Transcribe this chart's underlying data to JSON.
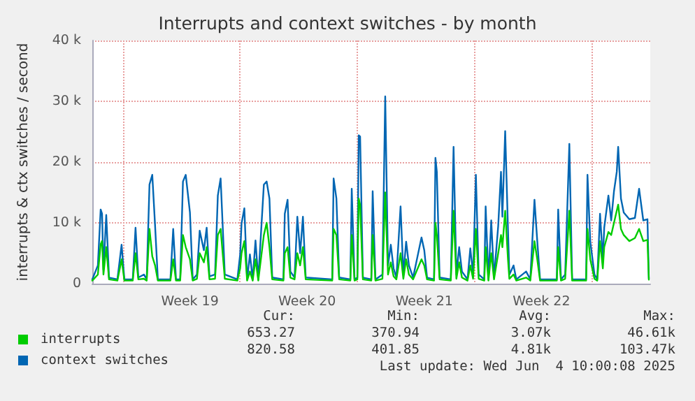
{
  "chart_data": {
    "type": "line",
    "title": "Interrupts and context switches - by month",
    "ylabel": "interrupts & ctx switches / second",
    "x": [
      "2025-05-02T04:00",
      "2025-05-02T12:00",
      "2025-05-02T16:00",
      "2025-05-02T18:00",
      "2025-05-02T20:00",
      "2025-05-03T00:00",
      "2025-05-03T04:00",
      "2025-05-03T16:00",
      "2025-05-03T22:00",
      "2025-05-04T02:00",
      "2025-05-04T14:00",
      "2025-05-04T18:00",
      "2025-05-04T22:00",
      "2025-05-05T06:00",
      "2025-05-05T10:00",
      "2025-05-05T14:00",
      "2025-05-05T18:00",
      "2025-05-05T22:00",
      "2025-05-06T02:00",
      "2025-05-06T20:00",
      "2025-05-07T00:00",
      "2025-05-07T04:00",
      "2025-05-07T10:00",
      "2025-05-07T14:00",
      "2025-05-07T18:00",
      "2025-05-08T00:00",
      "2025-05-08T04:00",
      "2025-05-08T10:00",
      "2025-05-08T14:00",
      "2025-05-08T20:00",
      "2025-05-09T00:00",
      "2025-05-09T04:00",
      "2025-05-09T12:00",
      "2025-05-09T16:00",
      "2025-05-09T20:00",
      "2025-05-10T02:00",
      "2025-05-10T20:00",
      "2025-05-11T00:00",
      "2025-05-11T02:00",
      "2025-05-11T06:00",
      "2025-05-11T10:00",
      "2025-05-11T14:00",
      "2025-05-11T18:00",
      "2025-05-11T22:00",
      "2025-05-12T02:00",
      "2025-05-12T10:00",
      "2025-05-12T14:00",
      "2025-05-12T18:00",
      "2025-05-12T22:00",
      "2025-05-13T14:00",
      "2025-05-13T16:00",
      "2025-05-13T20:00",
      "2025-05-14T00:00",
      "2025-05-14T06:00",
      "2025-05-14T10:00",
      "2025-05-14T14:00",
      "2025-05-14T18:00",
      "2025-05-14T22:00",
      "2025-05-16T12:00",
      "2025-05-16T14:00",
      "2025-05-16T18:00",
      "2025-05-16T22:00",
      "2025-05-17T14:00",
      "2025-05-17T16:00",
      "2025-05-17T20:00",
      "2025-05-18T00:00",
      "2025-05-18T02:00",
      "2025-05-18T04:00",
      "2025-05-18T08:00",
      "2025-05-18T20:00",
      "2025-05-18T22:00",
      "2025-05-19T02:00",
      "2025-05-19T12:00",
      "2025-05-19T16:00",
      "2025-05-19T20:00",
      "2025-05-20T00:00",
      "2025-05-20T04:00",
      "2025-05-20T08:00",
      "2025-05-20T14:00",
      "2025-05-20T18:00",
      "2025-05-20T22:00",
      "2025-05-21T02:00",
      "2025-05-21T08:00",
      "2025-05-21T20:00",
      "2025-05-22T00:00",
      "2025-05-22T04:00",
      "2025-05-22T14:00",
      "2025-05-22T16:00",
      "2025-05-22T18:00",
      "2025-05-22T22:00",
      "2025-05-23T14:00",
      "2025-05-23T18:00",
      "2025-05-23T22:00",
      "2025-05-24T02:00",
      "2025-05-24T06:00",
      "2025-05-24T14:00",
      "2025-05-24T18:00",
      "2025-05-24T22:00",
      "2025-05-25T02:00",
      "2025-05-25T06:00",
      "2025-05-25T14:00",
      "2025-05-25T16:00",
      "2025-05-25T20:00",
      "2025-05-26T00:00",
      "2025-05-26T04:00",
      "2025-05-26T10:00",
      "2025-05-26T14:00",
      "2025-05-26T16:00",
      "2025-05-26T20:00",
      "2025-05-27T00:00",
      "2025-05-27T02:00",
      "2025-05-27T08:00",
      "2025-05-27T12:00",
      "2025-05-28T02:00",
      "2025-05-28T08:00",
      "2025-05-28T14:00",
      "2025-05-28T18:00",
      "2025-05-28T22:00",
      "2025-05-29T22:00",
      "2025-05-30T00:00",
      "2025-05-30T04:00",
      "2025-05-30T10:00",
      "2025-05-30T16:00",
      "2025-05-30T20:00",
      "2025-05-31T16:00",
      "2025-05-31T18:00",
      "2025-05-31T22:00",
      "2025-06-01T04:00",
      "2025-06-01T08:00",
      "2025-06-01T12:00",
      "2025-06-01T16:00",
      "2025-06-01T18:00",
      "2025-06-02T00:00",
      "2025-06-02T04:00",
      "2025-06-02T08:00",
      "2025-06-02T12:00",
      "2025-06-02T14:00",
      "2025-06-02T18:00",
      "2025-06-02T22:00",
      "2025-06-03T06:00",
      "2025-06-03T14:00",
      "2025-06-03T20:00",
      "2025-06-04T02:00",
      "2025-06-04T08:00",
      "2025-06-04T10:00"
    ],
    "series": [
      {
        "name": "interrupts",
        "color": "#00cc00",
        "values": [
          500,
          1500,
          6500,
          7000,
          1500,
          6000,
          700,
          500,
          4000,
          500,
          500,
          5000,
          700,
          800,
          500,
          9000,
          4500,
          3000,
          500,
          500,
          4000,
          500,
          500,
          8000,
          6000,
          4000,
          500,
          800,
          5000,
          3500,
          6000,
          700,
          800,
          8000,
          9000,
          800,
          500,
          2500,
          5000,
          7000,
          500,
          2000,
          500,
          4000,
          500,
          8000,
          10000,
          6000,
          700,
          500,
          5000,
          6000,
          1000,
          700,
          5000,
          3000,
          6000,
          700,
          500,
          9000,
          8000,
          700,
          500,
          8000,
          500,
          700,
          14000,
          13000,
          700,
          500,
          8000,
          500,
          800,
          15000,
          1500,
          3500,
          1200,
          700,
          5000,
          800,
          4000,
          1500,
          700,
          4000,
          3000,
          700,
          500,
          10000,
          8000,
          700,
          500,
          12000,
          800,
          3500,
          1000,
          500,
          3000,
          800,
          9000,
          800,
          500,
          6000,
          500,
          5000,
          700,
          5000,
          8000,
          6000,
          12000,
          4000,
          800,
          1500,
          500,
          1000,
          500,
          7000,
          4000,
          500,
          500,
          6000,
          500,
          800,
          12000,
          500,
          500,
          9000,
          4000,
          800,
          500,
          7000,
          2500,
          6000,
          8500,
          8000,
          10000,
          12000,
          13000,
          9000,
          8000,
          7000,
          7500,
          9000,
          7000,
          7200,
          650
        ]
      },
      {
        "name": "context switches",
        "color": "#0066b3",
        "values": [
          700,
          3000,
          12200,
          11500,
          2300,
          11300,
          1000,
          700,
          6400,
          700,
          700,
          9200,
          1000,
          1500,
          700,
          16300,
          17900,
          9600,
          700,
          700,
          9000,
          700,
          700,
          16800,
          17900,
          11700,
          700,
          1500,
          8700,
          5500,
          9200,
          1200,
          1500,
          14500,
          17300,
          1500,
          700,
          4800,
          9900,
          12400,
          700,
          4800,
          700,
          7100,
          700,
          16300,
          16800,
          14000,
          1000,
          700,
          11500,
          13800,
          2000,
          1000,
          11000,
          5000,
          11000,
          1000,
          700,
          17300,
          14000,
          1000,
          700,
          15600,
          700,
          1000,
          24400,
          24200,
          1000,
          700,
          15200,
          700,
          1500,
          30800,
          3000,
          6400,
          2500,
          1000,
          12700,
          1500,
          6900,
          3000,
          1000,
          7600,
          5500,
          1000,
          700,
          20700,
          18400,
          1000,
          700,
          22500,
          1500,
          6000,
          2000,
          700,
          5800,
          1500,
          17900,
          1500,
          700,
          12700,
          700,
          10400,
          1000,
          9500,
          18400,
          11000,
          25100,
          9000,
          1500,
          3000,
          700,
          2000,
          700,
          13800,
          7000,
          700,
          700,
          12200,
          700,
          1500,
          23000,
          700,
          700,
          17900,
          6900,
          1500,
          700,
          11500,
          4000,
          9200,
          14500,
          10400,
          15200,
          18400,
          22500,
          14000,
          11700,
          10600,
          10800,
          15600,
          10400,
          10600,
          820
        ]
      }
    ],
    "xlim": [
      "2025-05-02T04:00",
      "2025-06-04T12:00"
    ],
    "xticks": [
      {
        "value": "2025-05-04T00:00",
        "label": null
      },
      {
        "value": "2025-05-08T00:00",
        "label": "Week 19"
      },
      {
        "value": "2025-05-11T00:00",
        "label": null
      },
      {
        "value": "2025-05-15T00:00",
        "label": "Week 20"
      },
      {
        "value": "2025-05-18T00:00",
        "label": null
      },
      {
        "value": "2025-05-22T00:00",
        "label": "Week 21"
      },
      {
        "value": "2025-05-25T00:00",
        "label": null
      },
      {
        "value": "2025-05-29T00:00",
        "label": "Week 22"
      },
      {
        "value": "2025-06-01T00:00",
        "label": null
      }
    ],
    "ylim": [
      0,
      40000
    ],
    "yticks": [
      0,
      {
        "value": 10000,
        "label": "10 k"
      },
      {
        "value": 20000,
        "label": "20 k"
      },
      {
        "value": 30000,
        "label": "30 k"
      },
      {
        "value": 40000,
        "label": "40 k"
      }
    ],
    "grid": true,
    "legend": "bottom left",
    "marker": "none",
    "line_style": "solid",
    "annotations": [
      "Cur:",
      "Min:",
      "Avg:",
      "Max:",
      "653.27",
      "370.94",
      "3.07k",
      "46.61k",
      "820.58",
      "401.85",
      "4.81k",
      "103.47k",
      "Last update: Wed Jun  4 10:00:08 2025"
    ]
  }
}
